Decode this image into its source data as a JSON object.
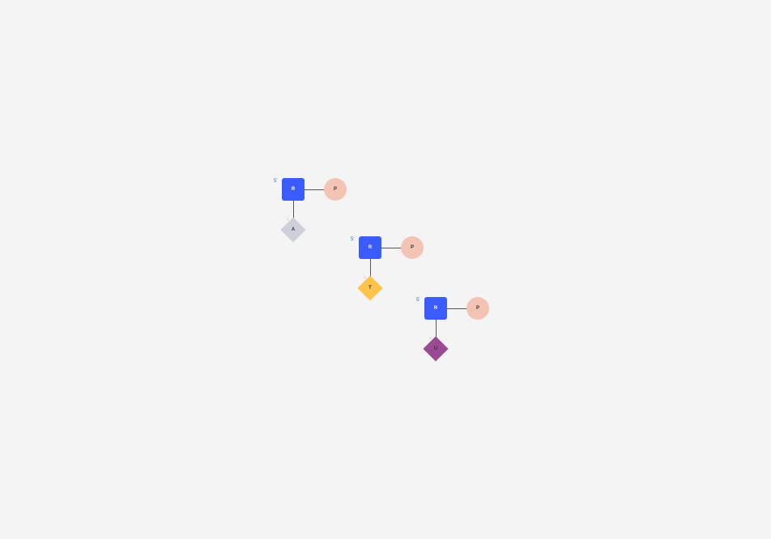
{
  "diagram": {
    "background": "#f4f4f4",
    "nucleotides": [
      {
        "five_prime": "5'",
        "one_prime": "1'",
        "sugar": {
          "label": "R",
          "color": "#3a5cff"
        },
        "phosphate": {
          "label": "P",
          "color": "#f3c4b4"
        },
        "base": {
          "label": "A",
          "color": "#cfcfd9"
        }
      },
      {
        "five_prime": "5'",
        "one_prime": "1'",
        "sugar": {
          "label": "R",
          "color": "#3a5cff"
        },
        "phosphate": {
          "label": "P",
          "color": "#f3c4b4"
        },
        "base": {
          "label": "T",
          "color": "#ffc24a"
        }
      },
      {
        "five_prime": "5'",
        "one_prime": "1'",
        "sugar": {
          "label": "R",
          "color": "#3a5cff"
        },
        "phosphate": {
          "label": "P",
          "color": "#f3c4b4"
        },
        "base": {
          "label": "U",
          "color": "#9a4a93"
        }
      }
    ]
  }
}
